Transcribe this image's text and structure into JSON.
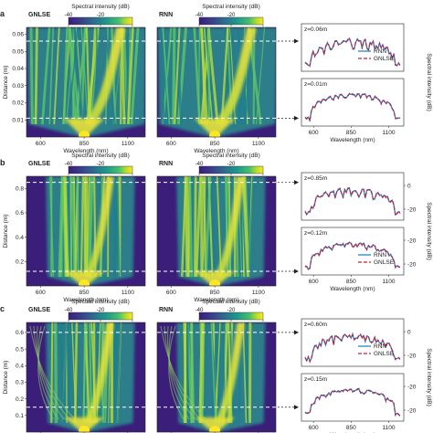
{
  "panel_letters": [
    "a",
    "b",
    "c"
  ],
  "labels": {
    "gnlse": "GNLSE",
    "rnn": "RNN",
    "colorbar_title": "Spectral intensity (dB)",
    "xlabel": "Wavelength (nm)",
    "ylabel": "Distance (m)",
    "right_ylabel": "Spectral intensity (dB)"
  },
  "colorbar_ticks": [
    "-40",
    "-20",
    "0"
  ],
  "wavelength_ticks": [
    "600",
    "850",
    "1100"
  ],
  "rows": [
    {
      "letter": "a",
      "distance_ticks": [
        "0.06",
        "0.05",
        "0.04",
        "0.03",
        "0.02",
        "0.01"
      ],
      "distance_range": [
        0,
        0.064
      ],
      "slices": [
        {
          "label": "z=0.06m",
          "distance": 0.056
        },
        {
          "label": "z=0.01m",
          "distance": 0.011
        }
      ],
      "legend": [
        "RNN",
        "GNLSE"
      ]
    },
    {
      "letter": "b",
      "distance_ticks": [
        "0.8",
        "0.6",
        "0.4",
        "0.2"
      ],
      "distance_range": [
        0,
        0.9
      ],
      "slices": [
        {
          "label": "z=0.85m",
          "distance": 0.85
        },
        {
          "label": "z=0.12m",
          "distance": 0.12
        }
      ],
      "right_ticks": [
        "0",
        "-20"
      ],
      "legend": [
        "RNN",
        "GNLSE"
      ]
    },
    {
      "letter": "c",
      "distance_ticks": [
        "0.6",
        "0.5",
        "0.4",
        "0.3",
        "0.2",
        "0.1"
      ],
      "distance_range": [
        0,
        0.66
      ],
      "slices": [
        {
          "label": "z=0.60m",
          "distance": 0.6
        },
        {
          "label": "z=0.15m",
          "distance": 0.15
        }
      ],
      "right_ticks": [
        "0",
        "-20"
      ],
      "legend": [
        "RNN",
        "GNLSE"
      ]
    }
  ],
  "colors": {
    "background": "#3b1d7a",
    "colormap": [
      "#440154",
      "#3b3f8c",
      "#2b6f8e",
      "#1f9a8a",
      "#45be70",
      "#b6dd2c",
      "#fde725"
    ],
    "rnn_line": "#2a86c8",
    "gnlse_line": "#c0203a",
    "dash_line": "#ffffff"
  }
}
